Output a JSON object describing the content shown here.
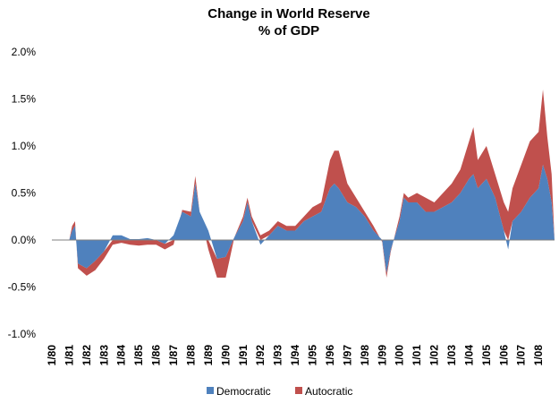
{
  "chart_data": {
    "type": "area",
    "title_lines": [
      "Change in World Reserve",
      "% of GDP"
    ],
    "xlabel": "",
    "ylabel": "",
    "stacked": true,
    "ylim": [
      -1.0,
      2.0
    ],
    "y_ticks": [
      "2.0%",
      "1.5%",
      "1.0%",
      "0.5%",
      "0.0%",
      "-0.5%",
      "-1.0%"
    ],
    "x_tick_labels": [
      "1/80",
      "1/81",
      "1/82",
      "1/83",
      "1/84",
      "1/85",
      "1/86",
      "1/87",
      "1/88",
      "1/89",
      "1/90",
      "1/91",
      "1/92",
      "1/93",
      "1/94",
      "1/95",
      "1/96",
      "1/97",
      "1/98",
      "1/99",
      "1/00",
      "1/01",
      "1/02",
      "1/03",
      "1/04",
      "1/05",
      "1/06",
      "1/07",
      "1/08"
    ],
    "x_start": "1/80",
    "x_end": "12/08",
    "grid": false,
    "legend_position": "bottom",
    "series": [
      {
        "name": "Democratic",
        "color": "#4F81BD",
        "x": [
          "1/80",
          "1/81",
          "3/81",
          "5/81",
          "7/81",
          "1/82",
          "7/82",
          "1/83",
          "7/83",
          "1/84",
          "7/84",
          "1/85",
          "7/85",
          "1/86",
          "7/86",
          "1/87",
          "7/87",
          "1/88",
          "4/88",
          "7/88",
          "1/89",
          "7/89",
          "1/90",
          "7/90",
          "1/91",
          "4/91",
          "7/91",
          "1/92",
          "7/92",
          "1/93",
          "7/93",
          "1/94",
          "7/94",
          "1/95",
          "7/95",
          "1/96",
          "4/96",
          "7/96",
          "1/97",
          "7/97",
          "1/98",
          "7/98",
          "1/99",
          "4/99",
          "7/99",
          "1/00",
          "4/00",
          "7/00",
          "1/01",
          "7/01",
          "1/02",
          "7/02",
          "1/03",
          "7/03",
          "1/04",
          "4/04",
          "7/04",
          "1/05",
          "7/05",
          "1/06",
          "4/06",
          "7/06",
          "1/07",
          "7/07",
          "1/08",
          "4/08",
          "7/08",
          "10/08",
          "12/08"
        ],
        "values": [
          0.0,
          0.0,
          0.1,
          0.15,
          -0.25,
          -0.3,
          -0.22,
          -0.12,
          0.05,
          0.05,
          0.01,
          0.01,
          0.02,
          0.0,
          -0.04,
          0.05,
          0.3,
          0.25,
          0.6,
          0.3,
          0.1,
          -0.2,
          -0.18,
          0.03,
          0.2,
          0.4,
          0.2,
          -0.05,
          0.05,
          0.15,
          0.1,
          0.1,
          0.2,
          0.25,
          0.3,
          0.55,
          0.6,
          0.55,
          0.4,
          0.35,
          0.25,
          0.1,
          0.0,
          -0.35,
          -0.1,
          0.2,
          0.45,
          0.4,
          0.4,
          0.3,
          0.3,
          0.35,
          0.4,
          0.5,
          0.65,
          0.7,
          0.55,
          0.65,
          0.45,
          0.1,
          -0.1,
          0.2,
          0.3,
          0.45,
          0.55,
          0.8,
          0.65,
          0.4,
          0.0
        ]
      },
      {
        "name": "Autocratic",
        "color": "#C0504D",
        "x": [
          "1/80",
          "1/81",
          "3/81",
          "5/81",
          "7/81",
          "1/82",
          "7/82",
          "1/83",
          "7/83",
          "1/84",
          "7/84",
          "1/85",
          "7/85",
          "1/86",
          "7/86",
          "1/87",
          "7/87",
          "1/88",
          "4/88",
          "7/88",
          "1/89",
          "7/89",
          "1/90",
          "7/90",
          "1/91",
          "4/91",
          "7/91",
          "1/92",
          "7/92",
          "1/93",
          "7/93",
          "1/94",
          "7/94",
          "1/95",
          "7/95",
          "1/96",
          "4/96",
          "7/96",
          "1/97",
          "7/97",
          "1/98",
          "7/98",
          "1/99",
          "4/99",
          "7/99",
          "1/00",
          "4/00",
          "7/00",
          "1/01",
          "7/01",
          "1/02",
          "7/02",
          "1/03",
          "7/03",
          "1/04",
          "4/04",
          "7/04",
          "1/05",
          "7/05",
          "1/06",
          "4/06",
          "7/06",
          "1/07",
          "7/07",
          "1/08",
          "4/08",
          "7/08",
          "10/08",
          "12/08"
        ],
        "values": [
          0.0,
          0.0,
          0.05,
          0.05,
          -0.05,
          -0.08,
          -0.1,
          -0.08,
          -0.05,
          -0.03,
          -0.05,
          -0.06,
          -0.05,
          -0.05,
          -0.06,
          -0.05,
          0.02,
          0.05,
          0.08,
          0.0,
          -0.1,
          -0.2,
          -0.22,
          0.0,
          0.05,
          0.05,
          0.05,
          0.05,
          0.05,
          0.05,
          0.05,
          0.05,
          0.05,
          0.1,
          0.1,
          0.3,
          0.35,
          0.4,
          0.2,
          0.1,
          0.05,
          0.05,
          -0.02,
          -0.05,
          -0.02,
          0.05,
          0.05,
          0.05,
          0.1,
          0.15,
          0.1,
          0.15,
          0.2,
          0.25,
          0.4,
          0.5,
          0.3,
          0.35,
          0.25,
          0.3,
          0.3,
          0.35,
          0.5,
          0.6,
          0.6,
          0.8,
          0.45,
          0.3,
          0.0
        ]
      }
    ]
  }
}
